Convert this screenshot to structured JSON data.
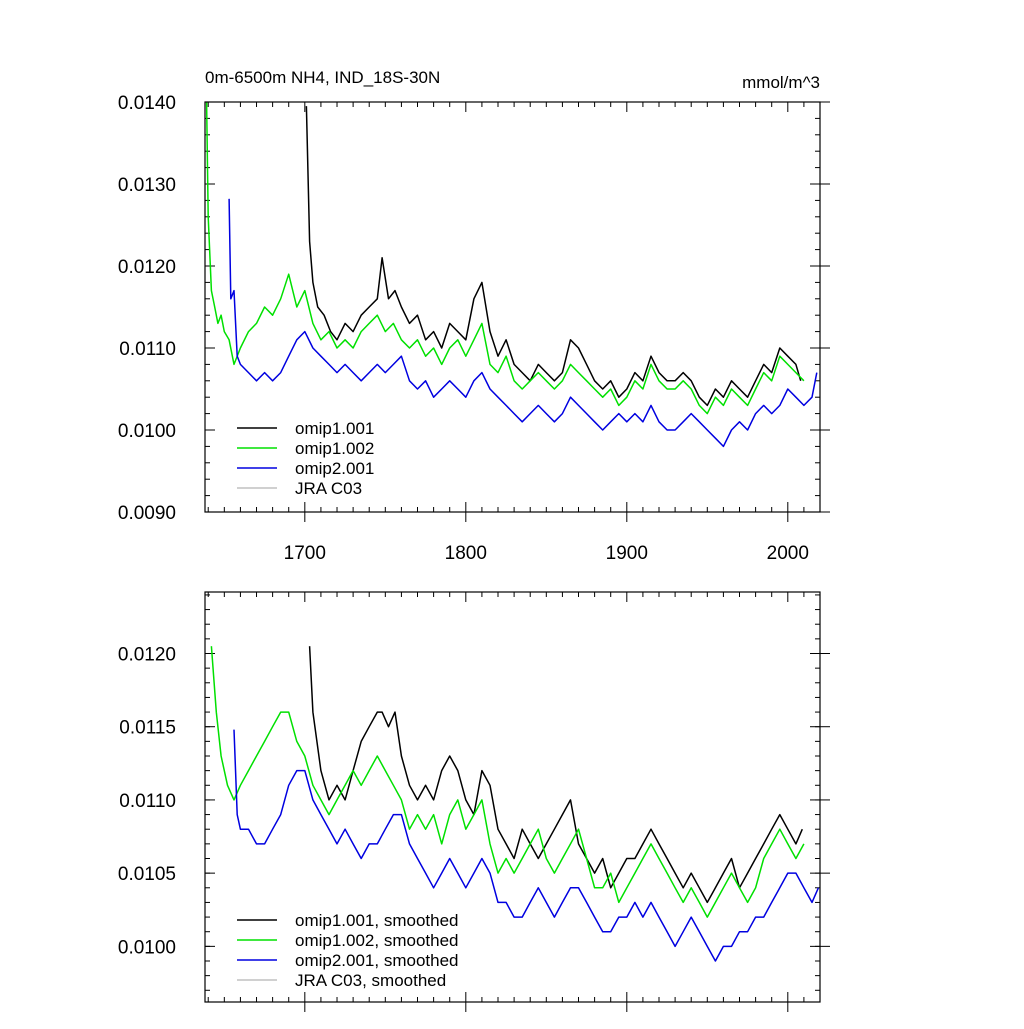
{
  "colors": {
    "omip1_001": "#000000",
    "omip1_002": "#00e000",
    "omip2_001": "#0000e0",
    "jra_c03": "#c0c0c0"
  },
  "chart_data": [
    {
      "type": "line",
      "title": "0m-6500m NH4, IND_18S-30N",
      "units": "mmol/m^3",
      "xlabel": "",
      "ylabel": "",
      "xlim": [
        1638,
        2020
      ],
      "ylim": [
        0.009,
        0.014
      ],
      "xticks": [
        1700,
        1800,
        1900,
        2000
      ],
      "yticks": [
        0.009,
        0.01,
        0.011,
        0.012,
        0.013,
        0.014
      ],
      "ytick_labels": [
        "0.0090",
        "0.0100",
        "0.0110",
        "0.0120",
        "0.0130",
        "0.0140"
      ],
      "legend": [
        "omip1.001",
        "omip1.002",
        "omip2.001",
        "JRA C03"
      ],
      "legend_position": "bottom-left",
      "series": [
        {
          "name": "omip1.001",
          "color_key": "omip1_001",
          "x": [
            1701,
            1703,
            1705,
            1708,
            1712,
            1716,
            1720,
            1725,
            1730,
            1735,
            1740,
            1745,
            1748,
            1752,
            1756,
            1760,
            1765,
            1770,
            1775,
            1780,
            1785,
            1790,
            1795,
            1800,
            1805,
            1810,
            1815,
            1820,
            1825,
            1830,
            1835,
            1840,
            1845,
            1850,
            1855,
            1860,
            1865,
            1870,
            1875,
            1880,
            1885,
            1890,
            1895,
            1900,
            1905,
            1910,
            1915,
            1920,
            1925,
            1930,
            1935,
            1940,
            1945,
            1950,
            1955,
            1960,
            1965,
            1970,
            1975,
            1980,
            1985,
            1990,
            1995,
            2000,
            2005,
            2008
          ],
          "y": [
            0.01395,
            0.0123,
            0.0118,
            0.0115,
            0.0114,
            0.0112,
            0.0111,
            0.0113,
            0.0112,
            0.0114,
            0.0115,
            0.0116,
            0.0121,
            0.0116,
            0.0117,
            0.0115,
            0.0113,
            0.0114,
            0.0111,
            0.0112,
            0.011,
            0.0113,
            0.0112,
            0.0111,
            0.0116,
            0.0118,
            0.0112,
            0.0109,
            0.0111,
            0.0108,
            0.0107,
            0.0106,
            0.0108,
            0.0107,
            0.0106,
            0.0107,
            0.0111,
            0.011,
            0.0108,
            0.0106,
            0.0105,
            0.0106,
            0.0104,
            0.0105,
            0.0107,
            0.0106,
            0.0109,
            0.0107,
            0.0106,
            0.0106,
            0.0107,
            0.0106,
            0.0104,
            0.0103,
            0.0105,
            0.0104,
            0.0106,
            0.0105,
            0.0104,
            0.0106,
            0.0108,
            0.0107,
            0.011,
            0.0109,
            0.0108,
            0.0106
          ]
        },
        {
          "name": "omip1.002",
          "color_key": "omip1_002",
          "x": [
            1639,
            1640,
            1642,
            1644,
            1646,
            1648,
            1650,
            1653,
            1656,
            1660,
            1665,
            1670,
            1675,
            1680,
            1685,
            1690,
            1695,
            1700,
            1705,
            1710,
            1715,
            1720,
            1725,
            1730,
            1735,
            1740,
            1745,
            1750,
            1755,
            1760,
            1765,
            1770,
            1775,
            1780,
            1785,
            1790,
            1795,
            1800,
            1805,
            1810,
            1815,
            1820,
            1825,
            1830,
            1835,
            1840,
            1845,
            1850,
            1855,
            1860,
            1865,
            1870,
            1875,
            1880,
            1885,
            1890,
            1895,
            1900,
            1905,
            1910,
            1915,
            1920,
            1925,
            1930,
            1935,
            1940,
            1945,
            1950,
            1955,
            1960,
            1965,
            1970,
            1975,
            1980,
            1985,
            1990,
            1995,
            2000,
            2005,
            2010
          ],
          "y": [
            0.014,
            0.0126,
            0.0117,
            0.0115,
            0.0113,
            0.0114,
            0.0112,
            0.0111,
            0.0108,
            0.011,
            0.0112,
            0.0113,
            0.0115,
            0.0114,
            0.0116,
            0.0119,
            0.0115,
            0.0117,
            0.0113,
            0.0111,
            0.0112,
            0.011,
            0.0111,
            0.011,
            0.0112,
            0.0113,
            0.0114,
            0.0112,
            0.0113,
            0.0111,
            0.011,
            0.0111,
            0.0109,
            0.011,
            0.0108,
            0.011,
            0.0111,
            0.0109,
            0.0111,
            0.0113,
            0.0108,
            0.0107,
            0.0109,
            0.0106,
            0.0105,
            0.0106,
            0.0107,
            0.0106,
            0.0105,
            0.0106,
            0.0108,
            0.0107,
            0.0106,
            0.0105,
            0.0104,
            0.0105,
            0.0103,
            0.0104,
            0.0106,
            0.0105,
            0.0108,
            0.0106,
            0.0105,
            0.0105,
            0.0106,
            0.0105,
            0.0103,
            0.0102,
            0.0104,
            0.0103,
            0.0105,
            0.0104,
            0.0103,
            0.0105,
            0.0107,
            0.0106,
            0.0109,
            0.0108,
            0.0107,
            0.0106
          ]
        },
        {
          "name": "omip2.001",
          "color_key": "omip2_001",
          "x": [
            1653,
            1654,
            1656,
            1658,
            1660,
            1665,
            1670,
            1675,
            1680,
            1685,
            1690,
            1695,
            1700,
            1705,
            1710,
            1715,
            1720,
            1725,
            1730,
            1735,
            1740,
            1745,
            1750,
            1755,
            1760,
            1765,
            1770,
            1775,
            1780,
            1785,
            1790,
            1795,
            1800,
            1805,
            1810,
            1815,
            1820,
            1825,
            1830,
            1835,
            1840,
            1845,
            1850,
            1855,
            1860,
            1865,
            1870,
            1875,
            1880,
            1885,
            1890,
            1895,
            1900,
            1905,
            1910,
            1915,
            1920,
            1925,
            1930,
            1935,
            1940,
            1945,
            1950,
            1955,
            1960,
            1965,
            1970,
            1975,
            1980,
            1985,
            1990,
            1995,
            2000,
            2005,
            2010,
            2015,
            2018
          ],
          "y": [
            0.01282,
            0.0116,
            0.0117,
            0.0109,
            0.0108,
            0.0107,
            0.0106,
            0.0107,
            0.0106,
            0.0107,
            0.0109,
            0.0111,
            0.0112,
            0.011,
            0.0109,
            0.0108,
            0.0107,
            0.0108,
            0.0107,
            0.0106,
            0.0107,
            0.0108,
            0.0107,
            0.0108,
            0.0109,
            0.0106,
            0.0105,
            0.0106,
            0.0104,
            0.0105,
            0.0106,
            0.0105,
            0.0104,
            0.0106,
            0.0107,
            0.0105,
            0.0104,
            0.0103,
            0.0102,
            0.0101,
            0.0102,
            0.0103,
            0.0102,
            0.0101,
            0.0102,
            0.0104,
            0.0103,
            0.0102,
            0.0101,
            0.01,
            0.0101,
            0.0102,
            0.0101,
            0.0102,
            0.0101,
            0.0103,
            0.0101,
            0.01,
            0.01,
            0.0101,
            0.0102,
            0.0101,
            0.01,
            0.0099,
            0.0098,
            0.01,
            0.0101,
            0.01,
            0.0102,
            0.0103,
            0.0102,
            0.0103,
            0.0105,
            0.0104,
            0.0103,
            0.0104,
            0.0107
          ]
        },
        {
          "name": "JRA C03",
          "color_key": "jra_c03",
          "x": [],
          "y": []
        }
      ]
    },
    {
      "type": "line",
      "title": "",
      "xlabel": "",
      "ylabel": "",
      "xlim": [
        1638,
        2020
      ],
      "ylim": [
        0.00962,
        0.01242
      ],
      "xticks": [
        1700,
        1800,
        1900,
        2000
      ],
      "yticks": [
        0.01,
        0.0105,
        0.011,
        0.0115,
        0.012
      ],
      "ytick_labels": [
        "0.0100",
        "0.0105",
        "0.0110",
        "0.0115",
        "0.0120"
      ],
      "legend": [
        "omip1.001, smoothed",
        "omip1.002, smoothed",
        "omip2.001, smoothed",
        "JRA C03, smoothed"
      ],
      "legend_position": "bottom-left",
      "series": [
        {
          "name": "omip1.001, smoothed",
          "color_key": "omip1_001",
          "x": [
            1703,
            1705,
            1710,
            1715,
            1720,
            1725,
            1730,
            1735,
            1740,
            1745,
            1748,
            1752,
            1756,
            1760,
            1765,
            1770,
            1775,
            1780,
            1785,
            1790,
            1795,
            1800,
            1805,
            1810,
            1815,
            1820,
            1825,
            1830,
            1835,
            1840,
            1845,
            1850,
            1855,
            1860,
            1865,
            1870,
            1875,
            1880,
            1885,
            1890,
            1895,
            1900,
            1905,
            1910,
            1915,
            1920,
            1925,
            1930,
            1935,
            1940,
            1945,
            1950,
            1955,
            1960,
            1965,
            1970,
            1975,
            1980,
            1985,
            1990,
            1995,
            2000,
            2005,
            2009
          ],
          "y": [
            0.01205,
            0.0116,
            0.0112,
            0.011,
            0.0111,
            0.011,
            0.0112,
            0.0114,
            0.0115,
            0.0116,
            0.0116,
            0.0115,
            0.0116,
            0.0113,
            0.0111,
            0.011,
            0.0111,
            0.011,
            0.0112,
            0.0113,
            0.0112,
            0.011,
            0.0109,
            0.0112,
            0.0111,
            0.0108,
            0.0107,
            0.0106,
            0.0108,
            0.0107,
            0.0106,
            0.0107,
            0.0108,
            0.0109,
            0.011,
            0.0107,
            0.0106,
            0.0105,
            0.0106,
            0.0104,
            0.0105,
            0.0106,
            0.0106,
            0.0107,
            0.0108,
            0.0107,
            0.0106,
            0.0105,
            0.0104,
            0.0105,
            0.0104,
            0.0103,
            0.0104,
            0.0105,
            0.0106,
            0.0104,
            0.0105,
            0.0106,
            0.0107,
            0.0108,
            0.0109,
            0.0108,
            0.0107,
            0.0108
          ]
        },
        {
          "name": "omip1.002, smoothed",
          "color_key": "omip1_002",
          "x": [
            1642,
            1645,
            1648,
            1652,
            1656,
            1660,
            1665,
            1670,
            1675,
            1680,
            1685,
            1690,
            1695,
            1700,
            1705,
            1710,
            1715,
            1720,
            1725,
            1730,
            1735,
            1740,
            1745,
            1750,
            1755,
            1760,
            1765,
            1770,
            1775,
            1780,
            1785,
            1790,
            1795,
            1800,
            1805,
            1810,
            1815,
            1820,
            1825,
            1830,
            1835,
            1840,
            1845,
            1850,
            1855,
            1860,
            1865,
            1870,
            1875,
            1880,
            1885,
            1890,
            1895,
            1900,
            1905,
            1910,
            1915,
            1920,
            1925,
            1930,
            1935,
            1940,
            1945,
            1950,
            1955,
            1960,
            1965,
            1970,
            1975,
            1980,
            1985,
            1990,
            1995,
            2000,
            2005,
            2010
          ],
          "y": [
            0.01205,
            0.0116,
            0.0113,
            0.0111,
            0.011,
            0.0111,
            0.0112,
            0.0113,
            0.0114,
            0.0115,
            0.0116,
            0.0116,
            0.0114,
            0.0113,
            0.0111,
            0.011,
            0.0109,
            0.011,
            0.0111,
            0.0112,
            0.0111,
            0.0112,
            0.0113,
            0.0112,
            0.0111,
            0.011,
            0.0108,
            0.0109,
            0.0108,
            0.0109,
            0.0107,
            0.0109,
            0.011,
            0.0108,
            0.0109,
            0.011,
            0.0107,
            0.0105,
            0.0106,
            0.0105,
            0.0106,
            0.0107,
            0.0108,
            0.0106,
            0.0105,
            0.0106,
            0.0107,
            0.0108,
            0.0106,
            0.0104,
            0.0104,
            0.0105,
            0.0103,
            0.0104,
            0.0105,
            0.0106,
            0.0107,
            0.0106,
            0.0105,
            0.0104,
            0.0103,
            0.0104,
            0.0103,
            0.0102,
            0.0103,
            0.0104,
            0.0105,
            0.0104,
            0.0103,
            0.0104,
            0.0106,
            0.0107,
            0.0108,
            0.0107,
            0.0106,
            0.0107
          ]
        },
        {
          "name": "omip2.001, smoothed",
          "color_key": "omip2_001",
          "x": [
            1656,
            1658,
            1660,
            1665,
            1670,
            1675,
            1680,
            1685,
            1690,
            1695,
            1700,
            1705,
            1710,
            1715,
            1720,
            1725,
            1730,
            1735,
            1740,
            1745,
            1750,
            1755,
            1760,
            1765,
            1770,
            1775,
            1780,
            1785,
            1790,
            1795,
            1800,
            1805,
            1810,
            1815,
            1820,
            1825,
            1830,
            1835,
            1840,
            1845,
            1850,
            1855,
            1860,
            1865,
            1870,
            1875,
            1880,
            1885,
            1890,
            1895,
            1900,
            1905,
            1910,
            1915,
            1920,
            1925,
            1930,
            1935,
            1940,
            1945,
            1950,
            1955,
            1960,
            1965,
            1970,
            1975,
            1980,
            1985,
            1990,
            1995,
            2000,
            2005,
            2010,
            2015,
            2019
          ],
          "y": [
            0.01148,
            0.0109,
            0.0108,
            0.0108,
            0.0107,
            0.0107,
            0.0108,
            0.0109,
            0.0111,
            0.0112,
            0.0112,
            0.011,
            0.0109,
            0.0108,
            0.0107,
            0.0108,
            0.0107,
            0.0106,
            0.0107,
            0.0107,
            0.0108,
            0.0109,
            0.0109,
            0.0107,
            0.0106,
            0.0105,
            0.0104,
            0.0105,
            0.0106,
            0.0105,
            0.0104,
            0.0105,
            0.0106,
            0.0105,
            0.0103,
            0.0103,
            0.0102,
            0.0102,
            0.0103,
            0.0104,
            0.0103,
            0.0102,
            0.0103,
            0.0104,
            0.0104,
            0.0103,
            0.0102,
            0.0101,
            0.0101,
            0.0102,
            0.0102,
            0.0103,
            0.0102,
            0.0103,
            0.0102,
            0.0101,
            0.01,
            0.0101,
            0.0102,
            0.0101,
            0.01,
            0.0099,
            0.01,
            0.01,
            0.0101,
            0.0101,
            0.0102,
            0.0102,
            0.0103,
            0.0104,
            0.0105,
            0.0105,
            0.0104,
            0.0103,
            0.0104
          ]
        },
        {
          "name": "JRA C03, smoothed",
          "color_key": "jra_c03",
          "x": [],
          "y": []
        }
      ]
    }
  ]
}
